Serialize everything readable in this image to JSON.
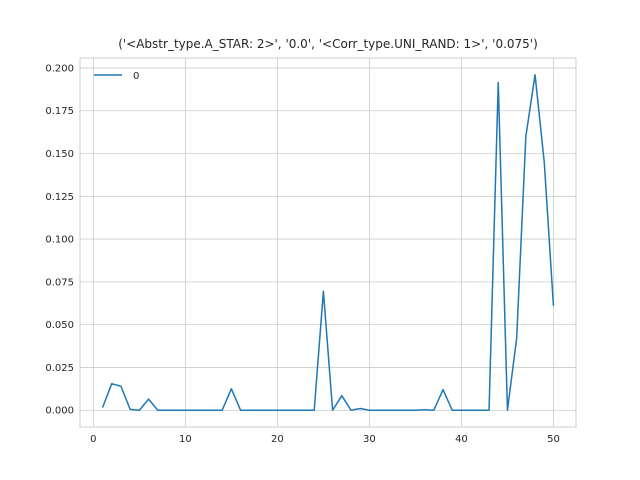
{
  "chart_data": {
    "type": "line",
    "title": "('<Abstr_type.A_STAR: 2>', '0.0', '<Corr_type.UNI_RAND: 1>', '0.075')",
    "xlabel": "",
    "ylabel": "",
    "xlim": [
      -1.45,
      52.45
    ],
    "ylim": [
      -0.0098,
      0.2058
    ],
    "xticks": [
      0,
      10,
      20,
      30,
      40,
      50
    ],
    "xtick_labels": [
      "0",
      "10",
      "20",
      "30",
      "40",
      "50"
    ],
    "yticks": [
      0.0,
      0.025,
      0.05,
      0.075,
      0.1,
      0.125,
      0.15,
      0.175,
      0.2
    ],
    "ytick_labels": [
      "0.000",
      "0.025",
      "0.050",
      "0.075",
      "0.100",
      "0.125",
      "0.150",
      "0.175",
      "0.200"
    ],
    "grid": true,
    "legend_position": "top-left",
    "series": [
      {
        "name": "0",
        "color": "#1f77b4",
        "x": [
          1,
          2,
          3,
          4,
          5,
          6,
          7,
          8,
          9,
          10,
          11,
          12,
          13,
          14,
          15,
          16,
          17,
          18,
          19,
          20,
          21,
          22,
          23,
          24,
          25,
          26,
          27,
          28,
          29,
          30,
          31,
          32,
          33,
          34,
          35,
          36,
          37,
          38,
          39,
          40,
          41,
          42,
          43,
          44,
          45,
          46,
          47,
          48,
          49,
          50
        ],
        "y": [
          0.0015,
          0.0155,
          0.014,
          0.0005,
          0.0,
          0.0065,
          0.0,
          0.0,
          0.0,
          0.0,
          0.0,
          0.0,
          0.0,
          0.0,
          0.0125,
          0.0,
          0.0,
          0.0,
          0.0,
          0.0,
          0.0,
          0.0,
          0.0,
          0.0,
          0.0695,
          0.0,
          0.0085,
          0.0,
          0.001,
          0.0,
          0.0,
          0.0,
          0.0,
          0.0,
          0.0,
          0.0003,
          0.0,
          0.012,
          0.0,
          0.0,
          0.0,
          0.0,
          0.0,
          0.1915,
          0.0,
          0.042,
          0.16,
          0.196,
          0.145,
          0.061
        ]
      }
    ]
  }
}
